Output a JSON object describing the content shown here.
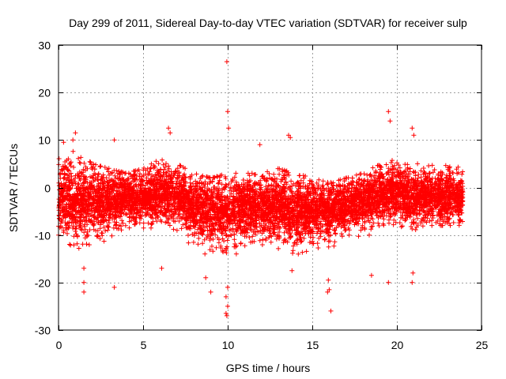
{
  "chart_data": {
    "type": "scatter",
    "title": "Day 299 of 2011, Sidereal Day-to-day VTEC variation (SDTVAR) for receiver sulp",
    "xlabel": "GPS time / hours",
    "ylabel": "SDTVAR / TECUs",
    "xlim": [
      0,
      25
    ],
    "ylim": [
      -30,
      30
    ],
    "xticks": [
      0,
      5,
      10,
      15,
      20,
      25
    ],
    "yticks": [
      -30,
      -20,
      -10,
      0,
      10,
      20,
      30
    ],
    "xtick_labels": [
      "0",
      "5",
      "10",
      "15",
      "20",
      "25"
    ],
    "ytick_labels": [
      "-30",
      "-20",
      "-10",
      "0",
      "10",
      "20",
      "30"
    ],
    "grid": true,
    "marker": "+",
    "series": [
      {
        "name": "SDTVAR",
        "color": "#ff0000",
        "x_range": [
          0,
          23.9
        ],
        "envelope": [
          {
            "x": 0.0,
            "mean": -2,
            "upper": 6,
            "lower": -10
          },
          {
            "x": 1.0,
            "mean": -3,
            "upper": 8,
            "lower": -13
          },
          {
            "x": 2.0,
            "mean": -3,
            "upper": 5,
            "lower": -12
          },
          {
            "x": 3.0,
            "mean": -2.5,
            "upper": 4,
            "lower": -11
          },
          {
            "x": 4.0,
            "mean": -2,
            "upper": 3,
            "lower": -10
          },
          {
            "x": 5.0,
            "mean": -2,
            "upper": 4,
            "lower": -9
          },
          {
            "x": 6.0,
            "mean": -1,
            "upper": 6,
            "lower": -8
          },
          {
            "x": 7.0,
            "mean": -2,
            "upper": 5,
            "lower": -9
          },
          {
            "x": 8.0,
            "mean": -4,
            "upper": 3,
            "lower": -13
          },
          {
            "x": 9.0,
            "mean": -5,
            "upper": 2,
            "lower": -15
          },
          {
            "x": 10.0,
            "mean": -5,
            "upper": 3,
            "lower": -15
          },
          {
            "x": 11.0,
            "mean": -4,
            "upper": 3,
            "lower": -13
          },
          {
            "x": 12.0,
            "mean": -4,
            "upper": 3,
            "lower": -12
          },
          {
            "x": 13.0,
            "mean": -4,
            "upper": 4,
            "lower": -13
          },
          {
            "x": 14.0,
            "mean": -5,
            "upper": 3,
            "lower": -14
          },
          {
            "x": 15.0,
            "mean": -5,
            "upper": 2,
            "lower": -14
          },
          {
            "x": 16.0,
            "mean": -5,
            "upper": 1,
            "lower": -13
          },
          {
            "x": 17.0,
            "mean": -4,
            "upper": 2,
            "lower": -11
          },
          {
            "x": 18.0,
            "mean": -3,
            "upper": 3,
            "lower": -10
          },
          {
            "x": 19.0,
            "mean": -2,
            "upper": 5,
            "lower": -10
          },
          {
            "x": 20.0,
            "mean": -1,
            "upper": 6,
            "lower": -8
          },
          {
            "x": 21.0,
            "mean": -2,
            "upper": 5,
            "lower": -9
          },
          {
            "x": 22.0,
            "mean": -2,
            "upper": 5,
            "lower": -8
          },
          {
            "x": 23.0,
            "mean": -2,
            "upper": 6,
            "lower": -8
          },
          {
            "x": 23.9,
            "mean": -2,
            "upper": 5,
            "lower": -8
          }
        ],
        "outliers": [
          {
            "x": 9.95,
            "y": 26.5
          },
          {
            "x": 10.0,
            "y": 16
          },
          {
            "x": 10.05,
            "y": 12.5
          },
          {
            "x": 19.5,
            "y": 16
          },
          {
            "x": 19.6,
            "y": 14
          },
          {
            "x": 20.9,
            "y": 12.5
          },
          {
            "x": 21.0,
            "y": 11
          },
          {
            "x": 6.5,
            "y": 12.5
          },
          {
            "x": 6.6,
            "y": 11.5
          },
          {
            "x": 1.0,
            "y": 11.5
          },
          {
            "x": 0.85,
            "y": 10
          },
          {
            "x": 3.3,
            "y": 10
          },
          {
            "x": 13.6,
            "y": 11
          },
          {
            "x": 13.7,
            "y": 10.5
          },
          {
            "x": 11.9,
            "y": 9
          },
          {
            "x": 0.3,
            "y": 9.5
          },
          {
            "x": 9.9,
            "y": -26.5
          },
          {
            "x": 9.95,
            "y": -27
          },
          {
            "x": 10.0,
            "y": -25
          },
          {
            "x": 9.9,
            "y": -23
          },
          {
            "x": 10.0,
            "y": -21
          },
          {
            "x": 9.0,
            "y": -22
          },
          {
            "x": 1.5,
            "y": -22
          },
          {
            "x": 1.5,
            "y": -20
          },
          {
            "x": 3.3,
            "y": -21
          },
          {
            "x": 16.1,
            "y": -26
          },
          {
            "x": 15.9,
            "y": -22
          },
          {
            "x": 16.0,
            "y": -21.5
          },
          {
            "x": 15.95,
            "y": -19.5
          },
          {
            "x": 18.5,
            "y": -18.5
          },
          {
            "x": 19.5,
            "y": -20
          },
          {
            "x": 20.9,
            "y": -20
          },
          {
            "x": 20.95,
            "y": -18
          },
          {
            "x": 6.1,
            "y": -17
          },
          {
            "x": 8.7,
            "y": -19
          },
          {
            "x": 13.8,
            "y": -17.5
          },
          {
            "x": 1.5,
            "y": -17
          }
        ]
      }
    ]
  }
}
